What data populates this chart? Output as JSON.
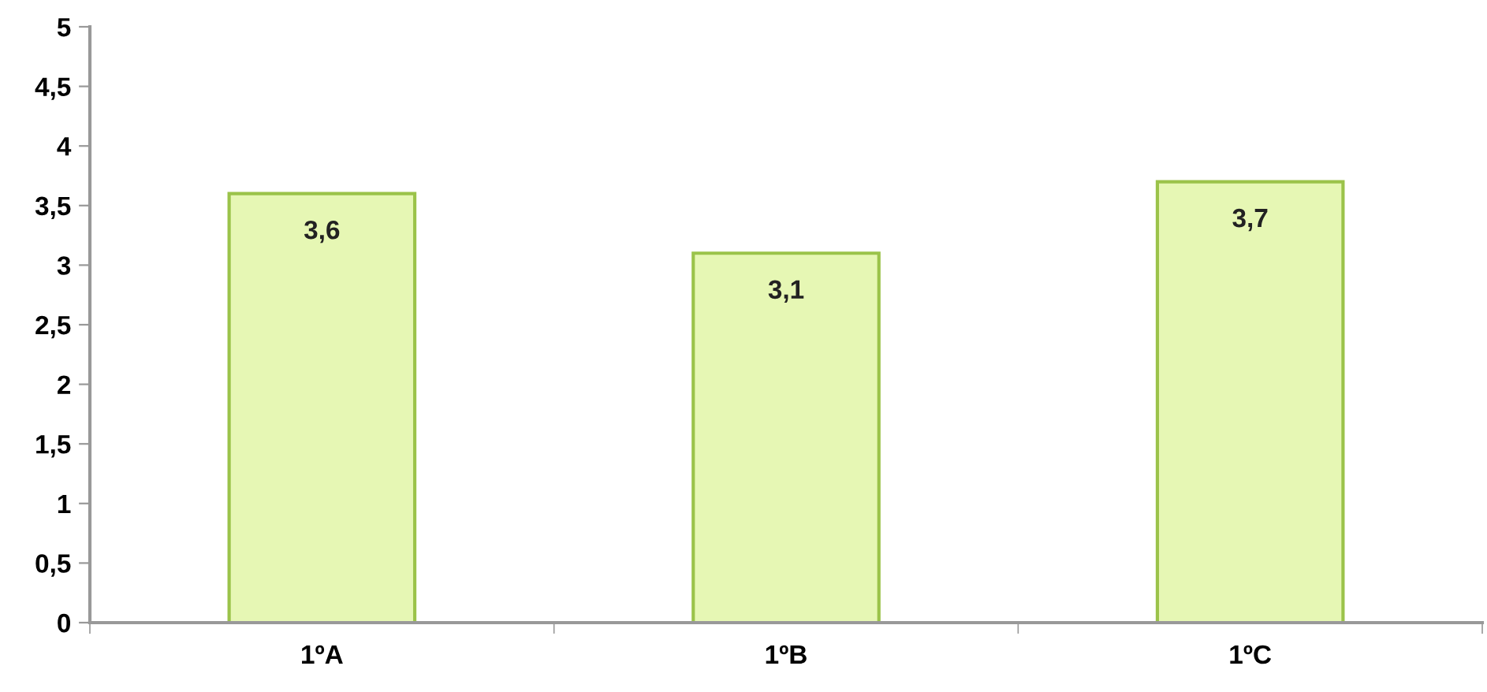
{
  "chart_data": {
    "type": "bar",
    "categories": [
      "1ºA",
      "1ºB",
      "1ºC"
    ],
    "values": [
      3.6,
      3.1,
      3.7
    ],
    "value_labels": [
      "3,6",
      "3,1",
      "3,7"
    ],
    "color": "#e6f7b4",
    "ylim": [
      0,
      5
    ],
    "yticks": [
      0,
      {
        "value": 0.5,
        "label": "0,5"
      },
      1,
      {
        "value": 1.5,
        "label": "1,5"
      },
      2,
      {
        "value": 2.5,
        "label": "2,5"
      },
      3,
      {
        "value": 3.5,
        "label": "3,5"
      },
      4,
      {
        "value": 4.5,
        "label": "4,5"
      },
      5
    ],
    "grid": false,
    "legend": false
  }
}
